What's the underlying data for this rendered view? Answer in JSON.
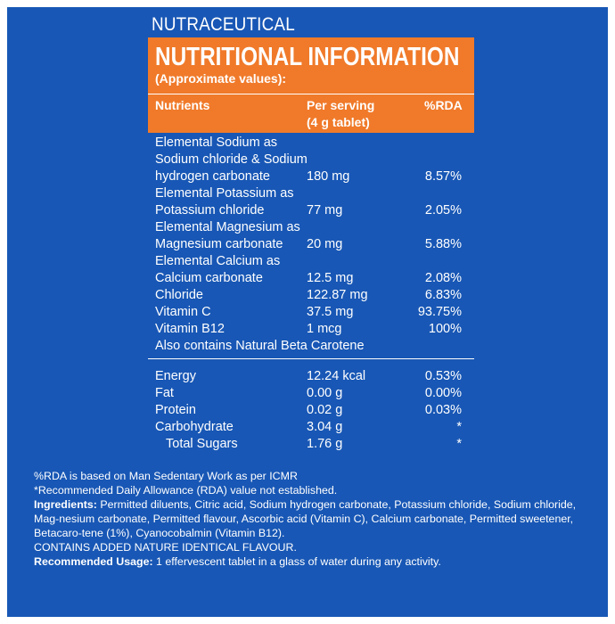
{
  "header": {
    "eyebrow": "NUTRACEUTICAL",
    "title": "NUTRITIONAL INFORMATION",
    "subtitle": "(Approximate values):",
    "col_nutrients": "Nutrients",
    "col_serving_1": "Per serving",
    "col_serving_2": "(4 g tablet)",
    "col_rda": "%RDA"
  },
  "section1_rows": [
    {
      "lines": [
        "Elemental Sodium as",
        "Sodium chloride & Sodium",
        "hydrogen carbonate"
      ],
      "serving": "180 mg",
      "rda": "8.57%"
    },
    {
      "lines": [
        "Elemental Potassium as",
        "Potassium chloride"
      ],
      "serving": "77 mg",
      "rda": "2.05%"
    },
    {
      "lines": [
        "Elemental Magnesium as",
        "Magnesium carbonate"
      ],
      "serving": "20 mg",
      "rda": "5.88%"
    },
    {
      "lines": [
        "Elemental Calcium as",
        "Calcium carbonate"
      ],
      "serving": "12.5 mg",
      "rda": "2.08%"
    },
    {
      "lines": [
        "Chloride"
      ],
      "serving": "122.87 mg",
      "rda": "6.83%"
    },
    {
      "lines": [
        "Vitamin C"
      ],
      "serving": "37.5 mg",
      "rda": "93.75%"
    },
    {
      "lines": [
        "Vitamin B12"
      ],
      "serving": "1 mcg",
      "rda": "100%"
    },
    {
      "lines": [
        "Also contains Natural Beta Carotene"
      ],
      "serving": "",
      "rda": ""
    }
  ],
  "section2_rows": [
    {
      "name": "Energy",
      "serving": "12.24 kcal",
      "rda": "0.53%"
    },
    {
      "name": "Fat",
      "serving": "0.00 g",
      "rda": "0.00%"
    },
    {
      "name": "Protein",
      "serving": "0.02 g",
      "rda": "0.03%"
    },
    {
      "name": "Carbohydrate",
      "serving": "3.04 g",
      "rda": "*"
    },
    {
      "name": "Total Sugars",
      "serving": "1.76 g",
      "rda": "*"
    }
  ],
  "footer": {
    "rda_basis": "%RDA is based on Man Sedentary Work as per ICMR",
    "rda_note": "*Recommended Daily Allowance (RDA) value not established.",
    "ingredients_label": "Ingredients:",
    "ingredients_text": " Permitted diluents, Citric acid, Sodium hydrogen carbonate, Potassium chloride, Sodium chloride, Mag-nesium carbonate, Permitted flavour, Ascorbic acid (Vitamin C), Calcium carbonate, Permitted sweetener, Betacaro-tene (1%), Cyanocobalmin (Vitamin B12).",
    "flavour_note": "CONTAINS ADDED NATURE IDENTICAL FLAVOUR.",
    "usage_label": "Recommended Usage:",
    "usage_text": " 1 effervescent tablet in a glass of water during any activity."
  },
  "colors": {
    "background": "#1857b5",
    "header_accent": "#f07a2a",
    "text": "#ffffff"
  }
}
